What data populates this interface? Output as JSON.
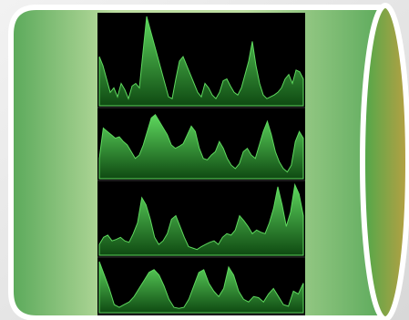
{
  "colors": {
    "background": "#e8e8e8",
    "outline": "#ffffff",
    "cylinder_dark": "#5aa95a",
    "cylinder_light": "#bcdda0",
    "end_cap_left": "#4ea84a",
    "end_cap_right": "#b9a043",
    "panel_background": "#000000",
    "waveform_top": "#5ed85e",
    "waveform_bottom": "#0f4a12"
  },
  "waveform_strips": [
    {
      "name": "waveform-strip-1",
      "levels": [
        0.55,
        0.45,
        0.3,
        0.15,
        0.2,
        0.1,
        0.25,
        0.18,
        0.08,
        0.22,
        0.25,
        0.2,
        0.6,
        1.0,
        0.85,
        0.7,
        0.55,
        0.4,
        0.25,
        0.1,
        0.08,
        0.3,
        0.5,
        0.55,
        0.45,
        0.35,
        0.25,
        0.15,
        0.1,
        0.25,
        0.2,
        0.12,
        0.08,
        0.15,
        0.28,
        0.3,
        0.22,
        0.15,
        0.12,
        0.2,
        0.35,
        0.5,
        0.72,
        0.45,
        0.25,
        0.12,
        0.08,
        0.1,
        0.12,
        0.15,
        0.2,
        0.3,
        0.35,
        0.25,
        0.4,
        0.38,
        0.3
      ]
    },
    {
      "name": "waveform-strip-2",
      "levels": [
        0.3,
        0.75,
        0.7,
        0.65,
        0.6,
        0.62,
        0.55,
        0.5,
        0.4,
        0.3,
        0.35,
        0.5,
        0.7,
        0.9,
        0.95,
        0.85,
        0.75,
        0.65,
        0.5,
        0.45,
        0.48,
        0.52,
        0.65,
        0.78,
        0.7,
        0.45,
        0.3,
        0.28,
        0.35,
        0.4,
        0.55,
        0.45,
        0.3,
        0.2,
        0.15,
        0.22,
        0.4,
        0.45,
        0.35,
        0.3,
        0.5,
        0.7,
        0.85,
        0.65,
        0.4,
        0.25,
        0.15,
        0.1,
        0.2,
        0.55,
        0.7,
        0.6
      ]
    },
    {
      "name": "waveform-strip-3",
      "levels": [
        0.15,
        0.25,
        0.28,
        0.2,
        0.22,
        0.25,
        0.2,
        0.18,
        0.3,
        0.45,
        0.8,
        0.7,
        0.5,
        0.25,
        0.15,
        0.2,
        0.3,
        0.5,
        0.55,
        0.4,
        0.25,
        0.12,
        0.1,
        0.08,
        0.12,
        0.15,
        0.18,
        0.2,
        0.15,
        0.25,
        0.3,
        0.28,
        0.35,
        0.55,
        0.48,
        0.4,
        0.3,
        0.35,
        0.32,
        0.3,
        0.45,
        0.65,
        0.95,
        0.7,
        0.4,
        0.6,
        0.98,
        0.85,
        0.55
      ]
    },
    {
      "name": "waveform-strip-4",
      "levels": [
        0.95,
        0.7,
        0.45,
        0.15,
        0.1,
        0.15,
        0.2,
        0.3,
        0.45,
        0.6,
        0.75,
        0.8,
        0.7,
        0.5,
        0.25,
        0.1,
        0.08,
        0.1,
        0.25,
        0.5,
        0.75,
        0.8,
        0.55,
        0.4,
        0.3,
        0.45,
        0.85,
        0.7,
        0.4,
        0.25,
        0.2,
        0.3,
        0.28,
        0.2,
        0.35,
        0.45,
        0.3,
        0.15,
        0.12,
        0.4,
        0.35,
        0.55
      ]
    }
  ]
}
